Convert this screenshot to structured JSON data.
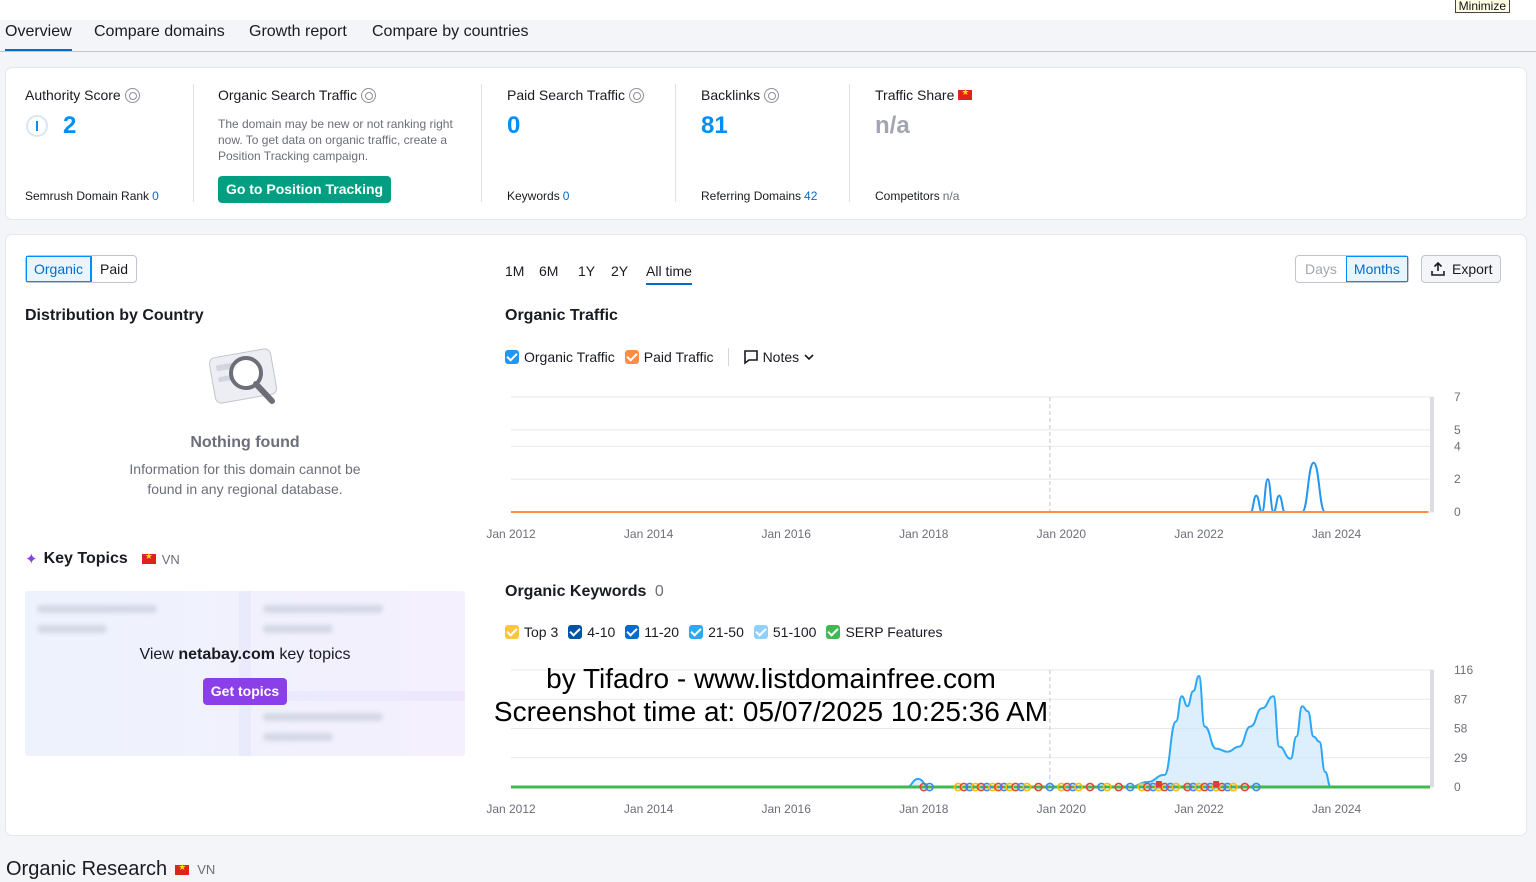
{
  "window": {
    "minimize_label": "Minimize"
  },
  "tabs": [
    {
      "label": "Overview"
    },
    {
      "label": "Compare domains"
    },
    {
      "label": "Growth report"
    },
    {
      "label": "Compare by countries"
    }
  ],
  "metrics": {
    "authority": {
      "label": "Authority Score",
      "value": "2",
      "sub_label": "Semrush Domain Rank",
      "sub_value": "0"
    },
    "organic": {
      "label": "Organic Search Traffic",
      "desc": "The domain may be new or not ranking right now. To get data on organic traffic, create a Position Tracking campaign.",
      "button": "Go to Position Tracking"
    },
    "paid": {
      "label": "Paid Search Traffic",
      "value": "0",
      "sub_label": "Keywords",
      "sub_value": "0"
    },
    "backlinks": {
      "label": "Backlinks",
      "value": "81",
      "sub_label": "Referring Domains",
      "sub_value": "42"
    },
    "traffic_share": {
      "label": "Traffic Share",
      "value": "n/a",
      "sub_label": "Competitors",
      "sub_value": "n/a"
    }
  },
  "toggle": {
    "organic": "Organic",
    "paid": "Paid"
  },
  "distribution": {
    "title": "Distribution by Country",
    "nothing_title": "Nothing found",
    "nothing_line1": "Information for this domain cannot be",
    "nothing_line2": "found in any regional database."
  },
  "key_topics": {
    "title": "Key Topics",
    "country": "VN",
    "view_prefix": "View",
    "domain": "netabay.com",
    "view_suffix": "key topics",
    "button": "Get topics"
  },
  "ranges": [
    "1M",
    "6M",
    "1Y",
    "2Y",
    "All time"
  ],
  "granularity": {
    "days": "Days",
    "months": "Months"
  },
  "export_label": "Export",
  "organic_traffic": {
    "title": "Organic Traffic",
    "legend": {
      "organic": "Organic Traffic",
      "paid": "Paid Traffic",
      "notes": "Notes"
    }
  },
  "organic_keywords": {
    "title": "Organic Keywords",
    "count": "0",
    "legend": [
      "Top 3",
      "4-10",
      "11-20",
      "21-50",
      "51-100",
      "SERP Features"
    ]
  },
  "colors": {
    "accent": "#008ff8",
    "organic": "#2196f3",
    "paid": "#ff8c42",
    "top3": "#ffc53d",
    "k4_10": "#0054a6",
    "k11_20": "#006dca",
    "k21_50": "#2ca8f7",
    "k51_100": "#8fd0ff",
    "serp": "#3fb950",
    "green_button": "#009f81",
    "purple_button": "#8b3fe8"
  },
  "watermark": {
    "line1": "by Tifadro - www.listdomainfree.com",
    "line2": "Screenshot time at: 05/07/2025 10:25:36 AM"
  },
  "organic_research": {
    "title": "Organic Research",
    "country": "VN"
  },
  "chart_data": [
    {
      "type": "line",
      "title": "Organic Traffic",
      "x_ticks": [
        "Jan 2012",
        "Jan 2014",
        "Jan 2016",
        "Jan 2018",
        "Jan 2020",
        "Jan 2022",
        "Jan 2024"
      ],
      "y_ticks": [
        0,
        2,
        4,
        5,
        7
      ],
      "ylim": [
        0,
        7
      ],
      "series": [
        {
          "name": "Organic Traffic",
          "points": [
            [
              "2012-01",
              0
            ],
            [
              "2022-10",
              0
            ],
            [
              "2022-11",
              1
            ],
            [
              "2022-12",
              0
            ],
            [
              "2023-01",
              2
            ],
            [
              "2023-02",
              0
            ],
            [
              "2023-03",
              1
            ],
            [
              "2023-04",
              0
            ],
            [
              "2023-07",
              0
            ],
            [
              "2023-09",
              3
            ],
            [
              "2023-11",
              0
            ],
            [
              "2025-05",
              0
            ]
          ]
        },
        {
          "name": "Paid Traffic",
          "points": [
            [
              "2012-01",
              0
            ],
            [
              "2025-05",
              0
            ]
          ]
        }
      ]
    },
    {
      "type": "area",
      "title": "Organic Keywords",
      "x_ticks": [
        "Jan 2012",
        "Jan 2014",
        "Jan 2016",
        "Jan 2018",
        "Jan 2020",
        "Jan 2022",
        "Jan 2024"
      ],
      "y_ticks": [
        0,
        29,
        58,
        87,
        116
      ],
      "ylim": [
        0,
        116
      ],
      "series": [
        {
          "name": "Total",
          "points": [
            [
              "2012-01",
              0
            ],
            [
              "2017-10",
              0
            ],
            [
              "2017-12",
              8
            ],
            [
              "2018-02",
              0
            ],
            [
              "2021-01",
              0
            ],
            [
              "2021-04",
              5
            ],
            [
              "2021-07",
              12
            ],
            [
              "2021-09",
              65
            ],
            [
              "2021-10",
              90
            ],
            [
              "2021-11",
              80
            ],
            [
              "2021-12",
              95
            ],
            [
              "2022-01",
              110
            ],
            [
              "2022-02",
              60
            ],
            [
              "2022-04",
              38
            ],
            [
              "2022-06",
              35
            ],
            [
              "2022-08",
              40
            ],
            [
              "2022-10",
              60
            ],
            [
              "2022-12",
              78
            ],
            [
              "2023-02",
              90
            ],
            [
              "2023-03",
              40
            ],
            [
              "2023-05",
              28
            ],
            [
              "2023-06",
              50
            ],
            [
              "2023-07",
              80
            ],
            [
              "2023-08",
              75
            ],
            [
              "2023-09",
              50
            ],
            [
              "2023-10",
              45
            ],
            [
              "2023-11",
              15
            ],
            [
              "2023-12",
              0
            ],
            [
              "2025-05",
              0
            ]
          ]
        }
      ]
    }
  ]
}
